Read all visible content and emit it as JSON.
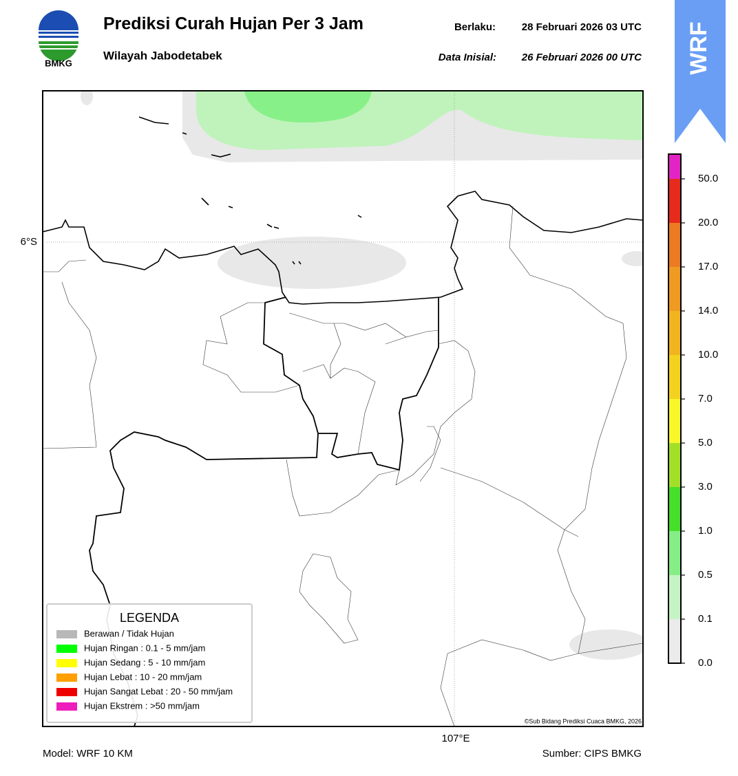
{
  "header": {
    "logo_text": "BMKG",
    "title": "Prediksi Curah Hujan Per 3 Jam",
    "subtitle": "Wilayah Jabodetabek",
    "valid_label": "Berlaku:",
    "valid_time": "28 Februari 2026 03 UTC",
    "init_label": "Data Inisial:",
    "init_time": "26 Februari 2026 00 UTC"
  },
  "badge": "WRF",
  "map": {
    "lat_label": "6°S",
    "lon_label": "107°E",
    "credit": "©Sub Bidang Prediksi Cuaca BMKG, 2026"
  },
  "legend": {
    "title": "LEGENDA",
    "items": [
      {
        "label": "Berawan / Tidak Hujan",
        "color": "#b8b8b8"
      },
      {
        "label": "Hujan Ringan : 0.1 - 5 mm/jam",
        "color": "#00ff00"
      },
      {
        "label": "Hujan Sedang : 5 - 10 mm/jam",
        "color": "#ffff00"
      },
      {
        "label": "Hujan Lebat : 10 - 20 mm/jam",
        "color": "#ffa000"
      },
      {
        "label": "Hujan Sangat Lebat : 20 - 50 mm/jam",
        "color": "#ee0000"
      },
      {
        "label": "Hujan Ekstrem : >50 mm/jam",
        "color": "#ee1cbc"
      }
    ]
  },
  "colorbar": {
    "labels": [
      "0.0",
      "0.1",
      "0.5",
      "1.0",
      "3.0",
      "5.0",
      "7.0",
      "10.0",
      "14.0",
      "17.0",
      "20.0",
      "50.0"
    ],
    "colors": [
      "#ebebeb",
      "#c4f4c4",
      "#86ee86",
      "#45e02a",
      "#a2e028",
      "#f7f72a",
      "#f3d21f",
      "#f0b41f",
      "#ef9a20",
      "#ec7a22",
      "#e62a1c",
      "#e324c4"
    ]
  },
  "footer": {
    "model": "Model: WRF 10 KM",
    "source": "Sumber: CIPS BMKG"
  }
}
